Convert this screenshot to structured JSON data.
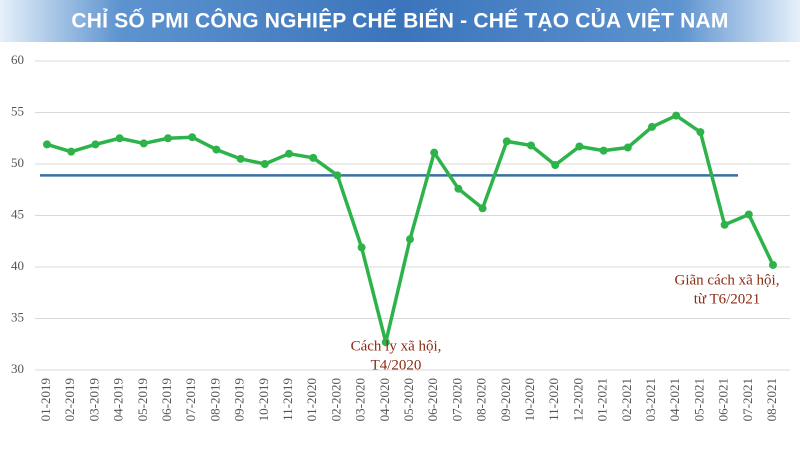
{
  "chart_data": {
    "type": "line",
    "title": "CHỈ SỐ PMI CÔNG NGHIỆP CHẾ BIẾN - CHẾ TẠO CỦA VIỆT NAM",
    "categories": [
      "01-2019",
      "02-2019",
      "03-2019",
      "04-2019",
      "05-2019",
      "06-2019",
      "07-2019",
      "08-2019",
      "09-2019",
      "10-2019",
      "11-2019",
      "01-2020",
      "02-2020",
      "03-2020",
      "04-2020",
      "05-2020",
      "06-2020",
      "07-2020",
      "08-2020",
      "09-2020",
      "10-2020",
      "11-2020",
      "12-2020",
      "01-2021",
      "02-2021",
      "03-2021",
      "04-2021",
      "05-2021",
      "06-2021",
      "07-2021",
      "08-2021"
    ],
    "series": [
      {
        "name": "PMI",
        "color": "#2db34a",
        "values": [
          51.9,
          51.2,
          51.9,
          52.5,
          52.0,
          52.5,
          52.6,
          51.4,
          50.5,
          50.0,
          51.0,
          50.6,
          48.9,
          41.9,
          32.7,
          42.7,
          51.1,
          47.6,
          45.7,
          52.2,
          51.8,
          49.9,
          51.7,
          51.3,
          51.6,
          53.6,
          54.7,
          53.1,
          44.1,
          45.1,
          40.2
        ]
      }
    ],
    "reference_line": {
      "value": 48.9,
      "color": "#3a6fa5"
    },
    "annotations": [
      {
        "lines": [
          "Cách ly xã hội,",
          "T4/2020"
        ],
        "category": "04-2020"
      },
      {
        "lines": [
          "Giãn cách xã hội,",
          "từ T6/2021"
        ],
        "category": "07-2021"
      }
    ],
    "ylim": [
      30,
      60
    ],
    "yticks": [
      30,
      35,
      40,
      45,
      50,
      55,
      60
    ],
    "grid": true
  }
}
